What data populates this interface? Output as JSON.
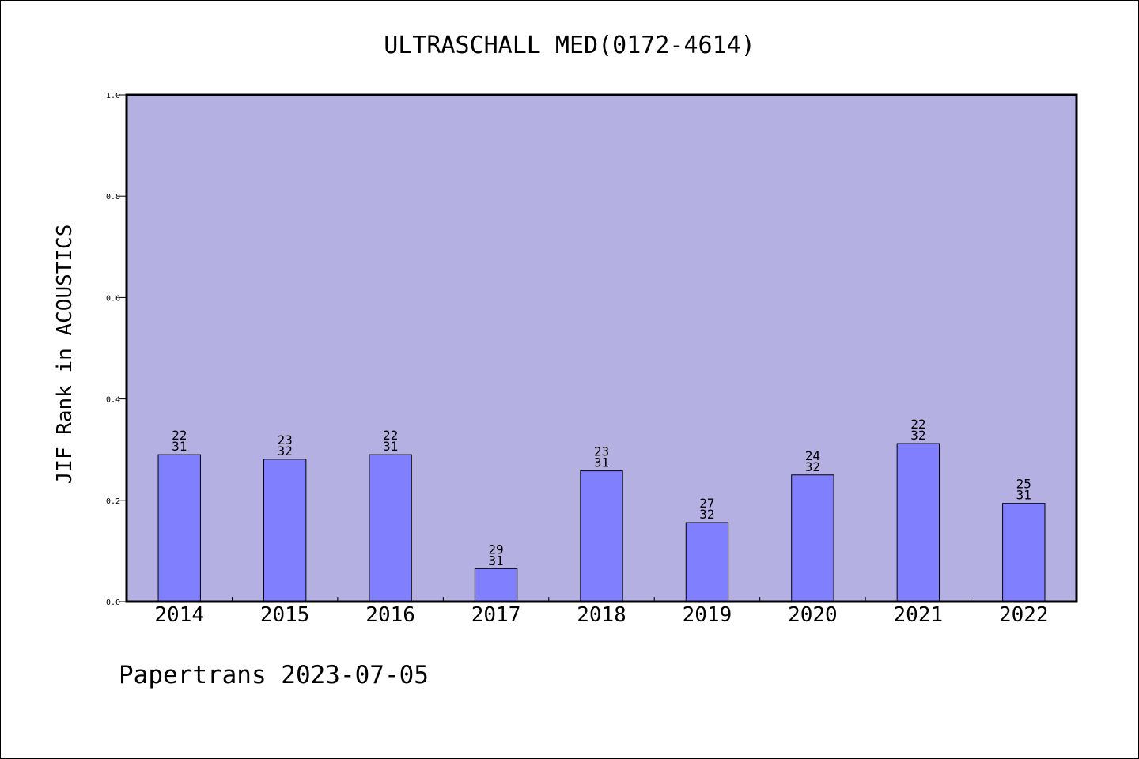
{
  "chart_data": {
    "type": "bar",
    "title": "ULTRASCHALL MED(0172-4614)",
    "xlabel": "",
    "ylabel": "JIF Rank in ACOUSTICS",
    "ylim": [
      0,
      1.0
    ],
    "yticks": [
      "0.0",
      "0.2",
      "0.4",
      "0.6",
      "0.8",
      "1.0"
    ],
    "ytick_values": [
      0,
      0.2,
      0.4,
      0.6,
      0.8,
      1.0
    ],
    "categories": [
      "2014",
      "2015",
      "2016",
      "2017",
      "2018",
      "2019",
      "2020",
      "2021",
      "2022"
    ],
    "values": [
      0.29,
      0.281,
      0.29,
      0.065,
      0.258,
      0.156,
      0.25,
      0.312,
      0.194
    ],
    "rank": [
      "22",
      "23",
      "22",
      "29",
      "23",
      "27",
      "24",
      "22",
      "25"
    ],
    "total": [
      "31",
      "32",
      "31",
      "31",
      "31",
      "32",
      "32",
      "32",
      "31"
    ],
    "grid": false,
    "colors": {
      "background": "#b5b0e2",
      "bar": "#8080ff",
      "axis": "#000000"
    }
  },
  "footer": "Papertrans 2023-07-05"
}
